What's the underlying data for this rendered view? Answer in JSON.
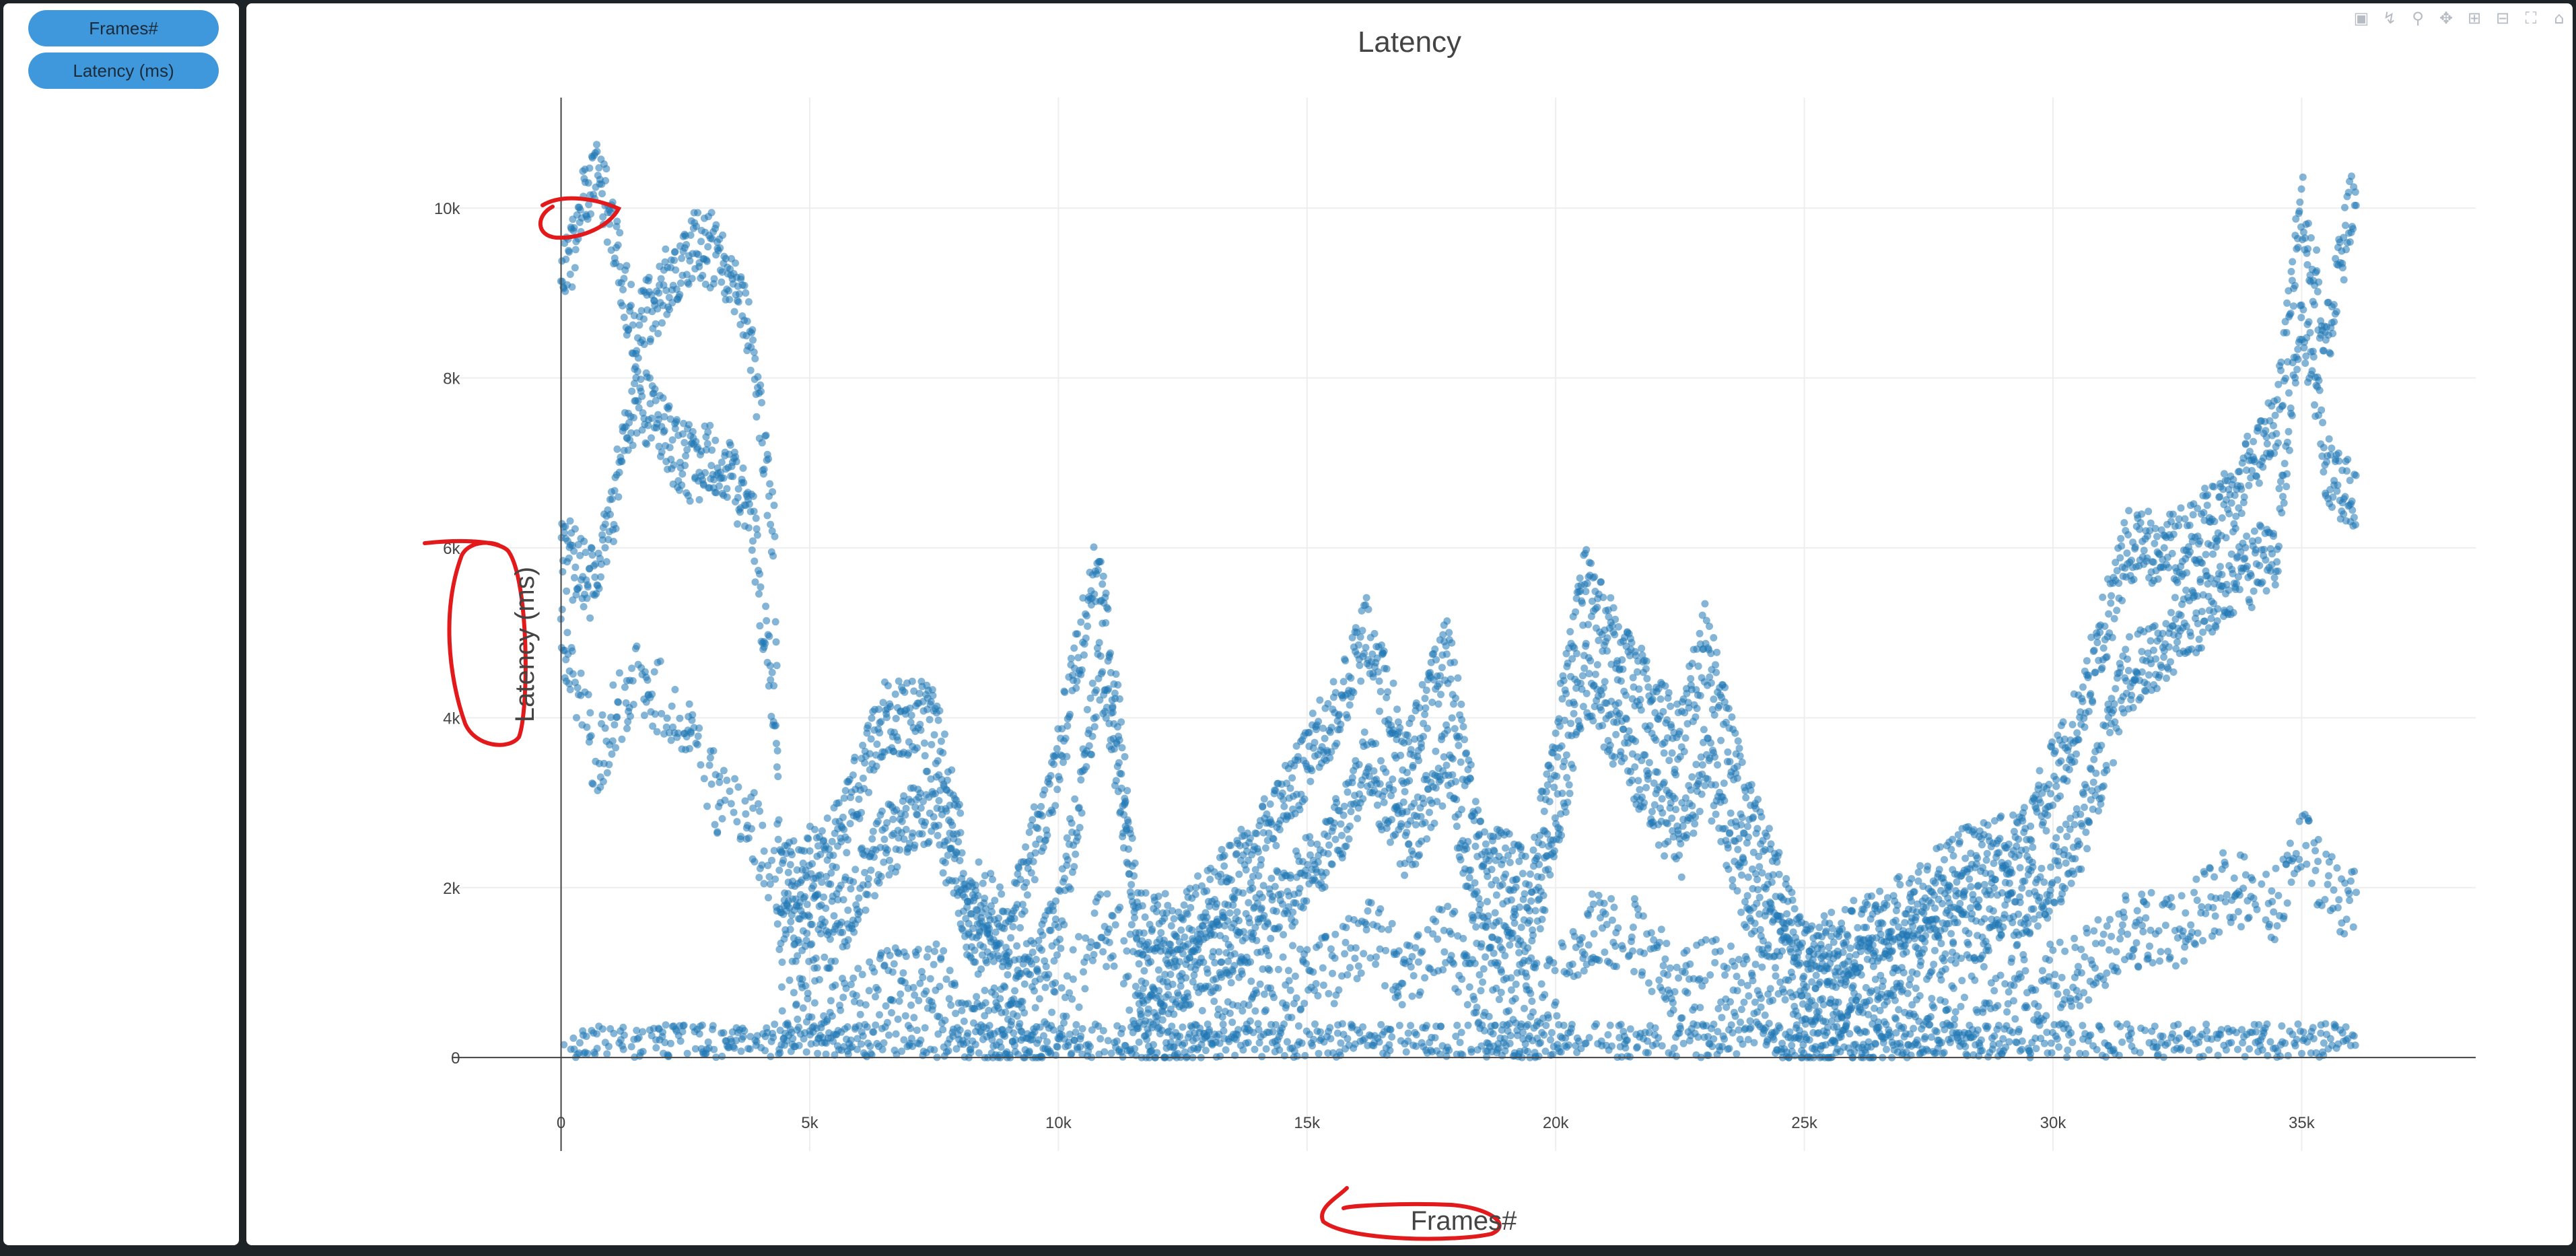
{
  "sidebar": {
    "buttons": [
      {
        "label": "Frames#"
      },
      {
        "label": "Latency (ms)"
      }
    ]
  },
  "modebar": {
    "icons": [
      "download-plot-icon",
      "compare-data-icon",
      "zoom-icon",
      "pan-icon",
      "zoom-in-icon",
      "zoom-out-icon",
      "autoscale-icon",
      "reset-axes-icon"
    ]
  },
  "colors": {
    "marker": "#1f77b4",
    "annotation": "#e31a1c",
    "grid": "#eeeeee",
    "axis": "#444444"
  },
  "chart_data": {
    "type": "scatter",
    "title": "Latency",
    "xlabel": "Frames#",
    "ylabel": "Latency (ms)",
    "xlim": [
      -2200,
      38500
    ],
    "ylim": [
      -1100,
      11300
    ],
    "x_ticks": [
      0,
      5000,
      10000,
      15000,
      20000,
      25000,
      30000,
      35000
    ],
    "x_tick_labels": [
      "0",
      "5k",
      "10k",
      "15k",
      "20k",
      "25k",
      "30k",
      "35k"
    ],
    "y_ticks": [
      0,
      2000,
      4000,
      6000,
      8000,
      10000
    ],
    "y_tick_labels": [
      "0",
      "2k",
      "4k",
      "6k",
      "8k",
      "10k"
    ],
    "grid": true,
    "legend": "none",
    "series": [
      {
        "values_description_not_rendered": "",
        "trend_x": [
          0,
          700,
          1500,
          2500,
          3200,
          3800,
          4300,
          4400,
          5500,
          6500,
          7500,
          8200,
          9000,
          10000,
          10800,
          11200,
          11600,
          12500,
          14000,
          15500,
          16200,
          17000,
          17800,
          18500,
          19500,
          20600,
          21500,
          22500,
          23000,
          23800,
          25000,
          26500,
          28000,
          29500,
          30500,
          31500,
          32500,
          33500,
          34500,
          35000,
          35500,
          36100
        ],
        "upper_y": [
          9000,
          10600,
          8500,
          9500,
          9500,
          8500,
          6000,
          2000,
          2500,
          4000,
          4000,
          2000,
          1500,
          3500,
          5900,
          4000,
          1500,
          1500,
          2500,
          4000,
          5000,
          3500,
          4800,
          2500,
          2000,
          5600,
          4600,
          3700,
          4900,
          3000,
          1200,
          1500,
          2200,
          2600,
          4000,
          6000,
          6000,
          6500,
          7500,
          10000,
          8500,
          10300
        ],
        "mid_y": [
          6000,
          5500,
          7800,
          7000,
          7000,
          6500,
          4000,
          1500,
          1500,
          2500,
          3000,
          1500,
          800,
          1500,
          4500,
          3500,
          800,
          1000,
          1500,
          2500,
          3500,
          2500,
          3500,
          1500,
          1200,
          4500,
          3500,
          2500,
          3500,
          2000,
          800,
          1000,
          1500,
          1800,
          2500,
          4500,
          5000,
          5500,
          6000,
          8800,
          7000,
          6500
        ],
        "lower_y": [
          5000,
          3500,
          4500,
          4000,
          3000,
          2800,
          2000,
          500,
          500,
          800,
          1000,
          300,
          200,
          500,
          1500,
          1500,
          300,
          300,
          800,
          1000,
          1500,
          1000,
          1500,
          500,
          400,
          1500,
          1500,
          800,
          1000,
          800,
          200,
          300,
          500,
          800,
          1000,
          1500,
          1500,
          2000,
          1800,
          2500,
          2000,
          1800
        ]
      }
    ]
  }
}
